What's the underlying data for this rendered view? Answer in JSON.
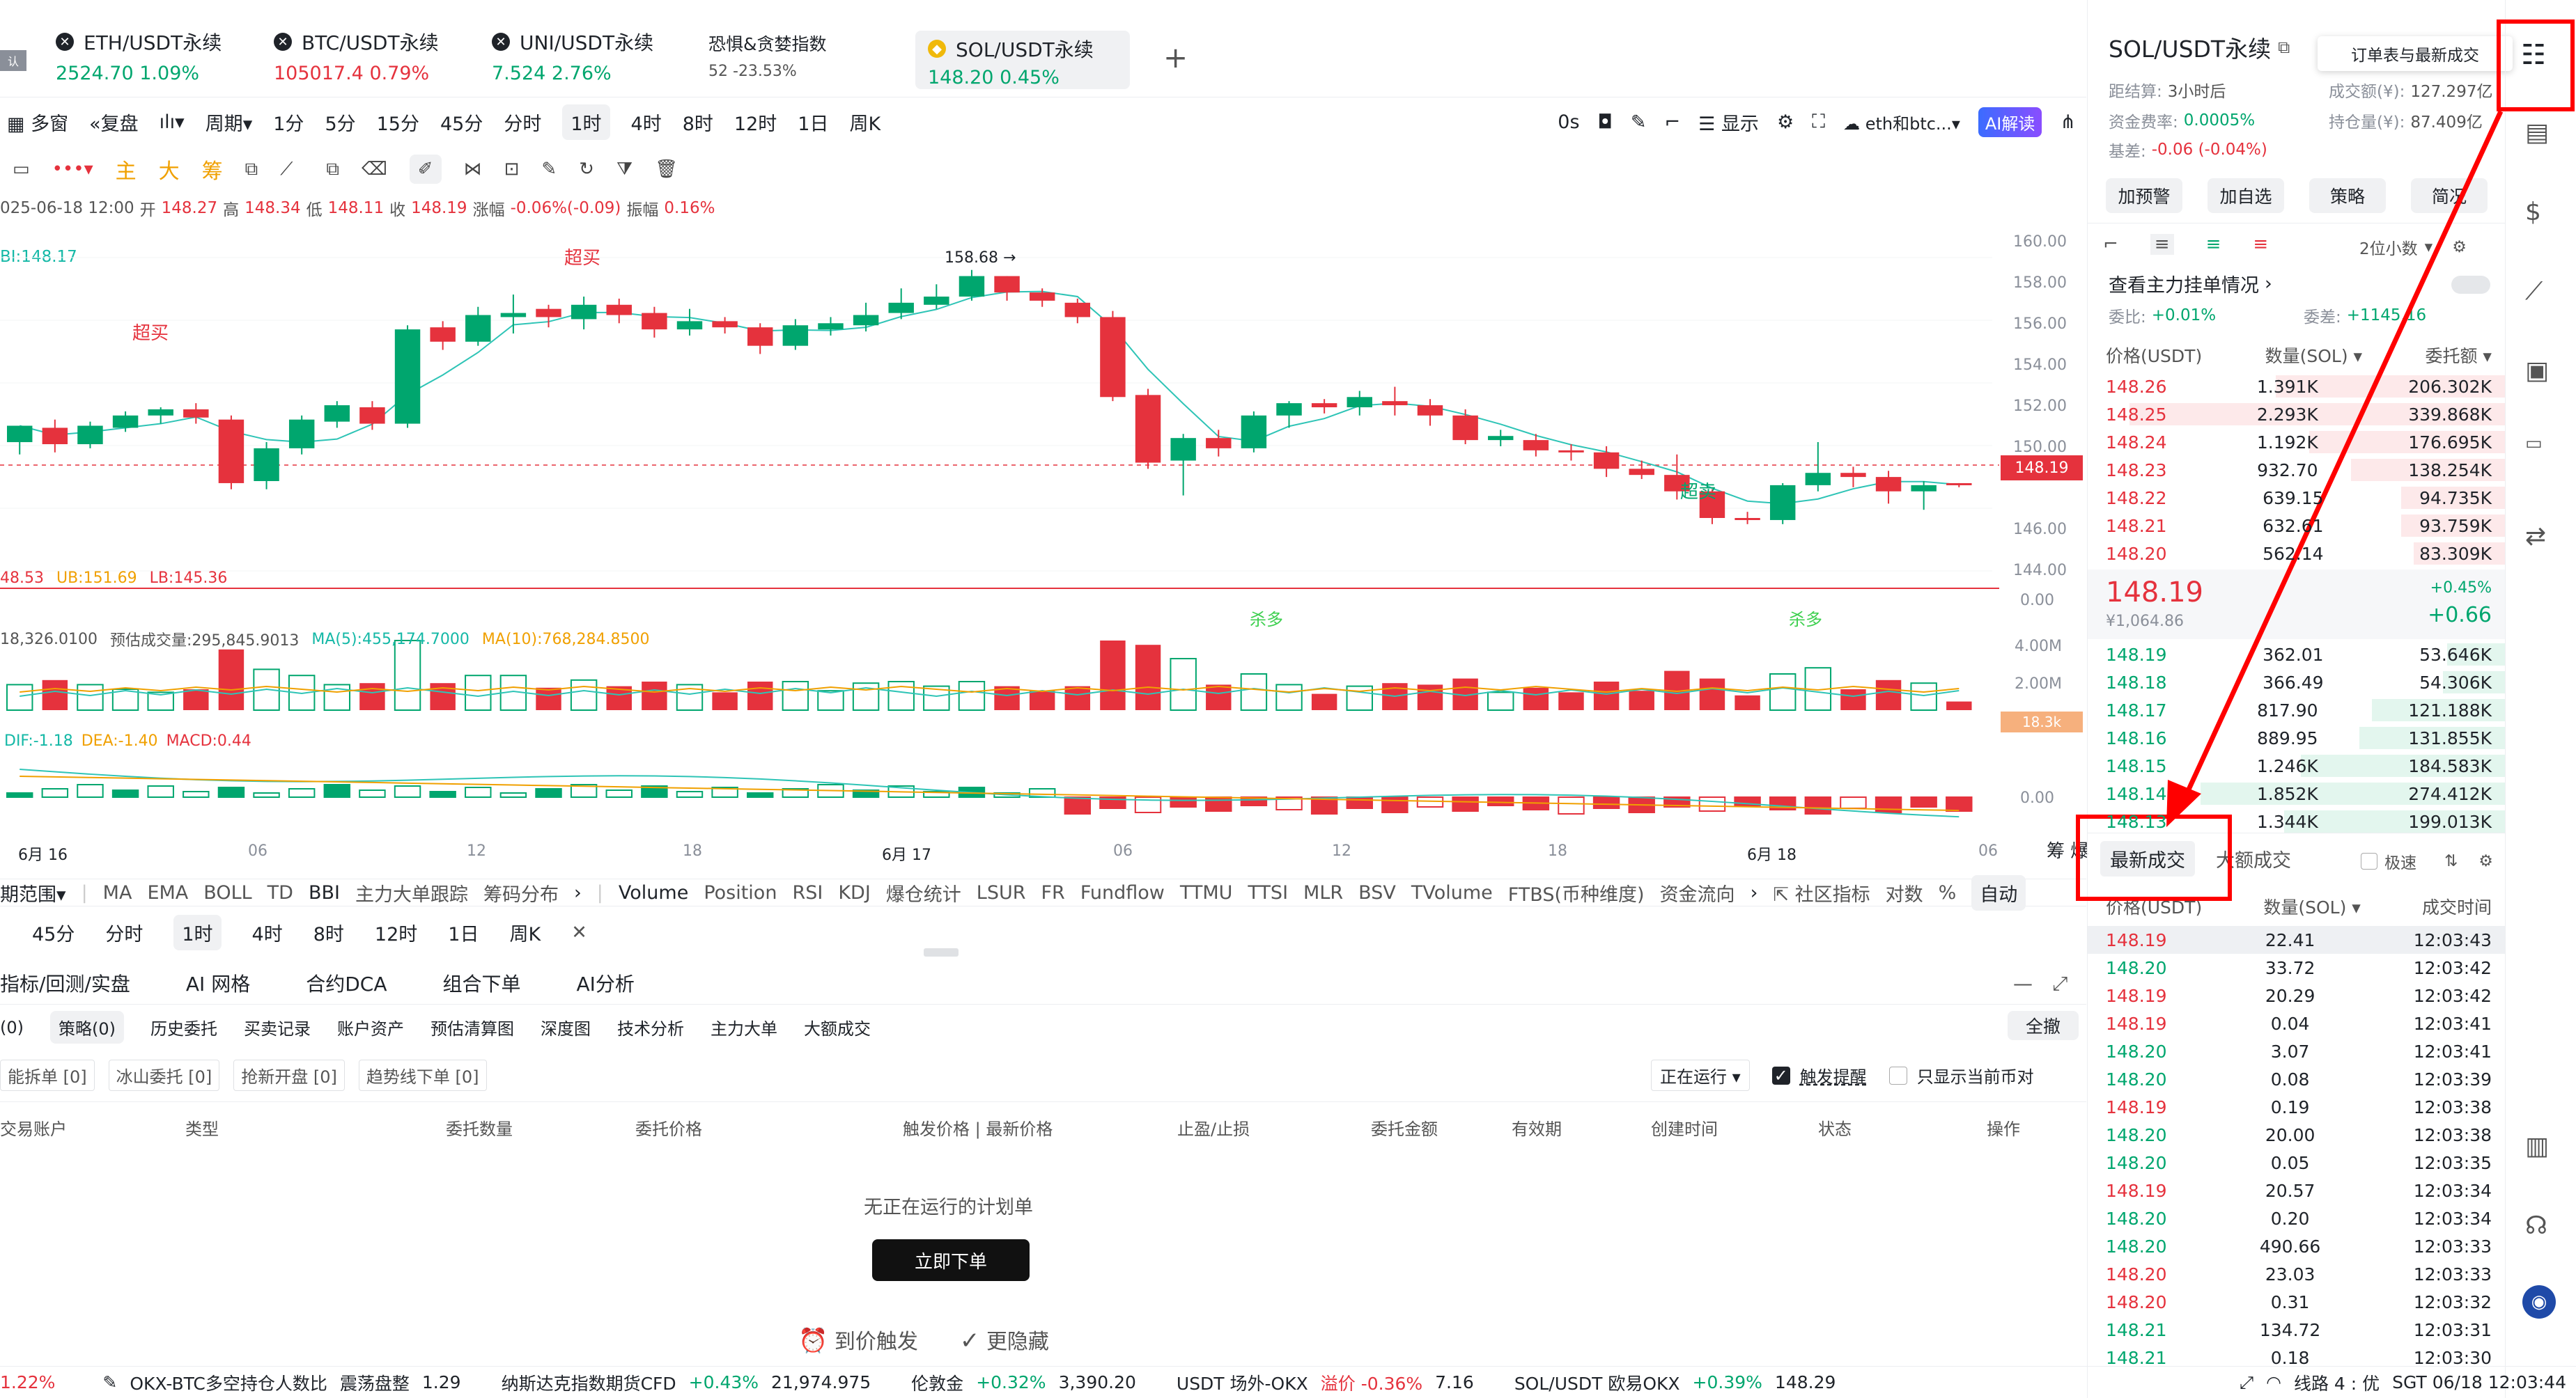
{
  "top_tabs": [
    {
      "name": "ETH/USDT永续",
      "price": "2524.70",
      "change": "1.09%",
      "dir": "up"
    },
    {
      "name": "BTC/USDT永续",
      "price": "105017.4",
      "change": "0.79%",
      "dir": "down"
    },
    {
      "name": "UNI/USDT永续",
      "price": "7.524",
      "change": "2.76%",
      "dir": "up"
    },
    {
      "name": "恐惧&贪婪指数",
      "price": "52",
      "change": "-23.53%",
      "dir": "flat"
    },
    {
      "name": "SOL/USDT永续",
      "price": "148.20",
      "change": "0.45%",
      "dir": "up"
    }
  ],
  "top_add": "+",
  "toolbar1": {
    "multi": "多窗",
    "replay": "复盘",
    "period": "周期",
    "intervals": [
      "1分",
      "5分",
      "15分",
      "45分",
      "分时",
      "1时",
      "4时",
      "8时",
      "12时",
      "1日",
      "周K"
    ],
    "active": "1时",
    "zero": "0s",
    "display": "显示",
    "compare": "eth和btc...",
    "ai": "AI解读"
  },
  "toolbar2": {
    "signals": [
      "主",
      "大",
      "筹"
    ]
  },
  "ohlc": {
    "date": "025-06-18 12:00",
    "o_label": "开",
    "o": "148.27",
    "h_label": "高",
    "h": "148.34",
    "l_label": "低",
    "l": "148.11",
    "c_label": "收",
    "c": "148.19",
    "chg_label": "涨幅",
    "chg": "-0.06%(-0.09)",
    "amp_label": "振幅",
    "amp": "0.16%"
  },
  "bbi_label": "BI:148.17",
  "chart_labels": {
    "overbought1": "超买",
    "overbought2": "超买",
    "oversold": "超卖",
    "max_label": "158.68",
    "kill1": "杀多",
    "kill2": "杀多"
  },
  "bands": {
    "mid": "48.53",
    "ub": "UB:151.69",
    "lb": "LB:145.36"
  },
  "vol_line": {
    "v": "18,326.0100",
    "est": "预估成交量:295,845.9013",
    "ma5": "MA(5):455,174.7000",
    "ma10": "MA(10):768,284.8500"
  },
  "macd_line": {
    "dif": "DIF:-1.18",
    "dea": "DEA:-1.40",
    "macd": "MACD:0.44"
  },
  "price_axis": [
    "160.00",
    "158.00",
    "156.00",
    "154.00",
    "152.00",
    "150.00",
    "148.19",
    "146.00",
    "144.00"
  ],
  "sub_axis": {
    "zero1": "0.00",
    "v4": "4.00M",
    "v2": "2.00M",
    "vcur": "18.3k",
    "zero2": "0.00"
  },
  "time_axis": [
    "6月 16",
    "06",
    "12",
    "18",
    "6月 17",
    "06",
    "12",
    "18",
    "6月 18",
    "06"
  ],
  "chart_data": {
    "type": "candlestick",
    "candles": [
      [
        150.3,
        151.1,
        149.7,
        151.0
      ],
      [
        151.0,
        150.2,
        149.8,
        151.4
      ],
      [
        150.2,
        151.1,
        150.0,
        151.3
      ],
      [
        151.0,
        151.6,
        150.8,
        151.8
      ],
      [
        151.6,
        151.9,
        151.2,
        152.0
      ],
      [
        151.9,
        151.5,
        151.2,
        152.2
      ],
      [
        151.4,
        148.3,
        148.0,
        151.6
      ],
      [
        148.4,
        150.0,
        148.0,
        150.3
      ],
      [
        150.0,
        151.4,
        149.7,
        151.6
      ],
      [
        151.3,
        152.1,
        151.0,
        152.3
      ],
      [
        152.0,
        151.2,
        150.9,
        152.3
      ],
      [
        151.2,
        155.8,
        151.0,
        156.0
      ],
      [
        155.9,
        155.2,
        154.8,
        156.2
      ],
      [
        155.2,
        156.5,
        155.0,
        156.9
      ],
      [
        156.4,
        156.6,
        155.6,
        157.5
      ],
      [
        156.8,
        156.4,
        155.9,
        157.0
      ],
      [
        156.3,
        157.0,
        155.8,
        157.4
      ],
      [
        157.0,
        156.5,
        156.1,
        157.3
      ],
      [
        156.6,
        155.8,
        155.4,
        156.9
      ],
      [
        155.8,
        156.2,
        155.5,
        156.8
      ],
      [
        156.2,
        155.9,
        155.6,
        156.4
      ],
      [
        155.9,
        155.0,
        154.6,
        156.1
      ],
      [
        155.0,
        156.0,
        154.8,
        156.3
      ],
      [
        155.8,
        156.1,
        155.5,
        156.4
      ],
      [
        156.0,
        156.5,
        155.7,
        157.1
      ],
      [
        156.6,
        157.1,
        156.3,
        157.8
      ],
      [
        157.0,
        157.4,
        156.8,
        158.0
      ],
      [
        157.4,
        158.4,
        157.2,
        158.7
      ],
      [
        158.4,
        157.6,
        157.2,
        158.4
      ],
      [
        157.6,
        157.2,
        156.9,
        157.8
      ],
      [
        157.1,
        156.4,
        156.1,
        157.3
      ],
      [
        156.4,
        152.5,
        152.3,
        156.7
      ],
      [
        152.6,
        149.3,
        149.0,
        152.9
      ],
      [
        149.4,
        150.5,
        147.7,
        150.7
      ],
      [
        150.5,
        150.0,
        149.6,
        150.9
      ],
      [
        150.0,
        151.6,
        149.8,
        151.8
      ],
      [
        151.6,
        152.2,
        151.0,
        152.3
      ],
      [
        152.2,
        152.0,
        151.7,
        152.4
      ],
      [
        152.0,
        152.5,
        151.6,
        152.8
      ],
      [
        152.3,
        152.1,
        151.6,
        153.0
      ],
      [
        152.1,
        151.6,
        151.1,
        152.4
      ],
      [
        151.6,
        150.4,
        150.2,
        151.9
      ],
      [
        150.4,
        150.6,
        150.1,
        150.9
      ],
      [
        150.4,
        149.9,
        149.6,
        150.7
      ],
      [
        149.9,
        149.8,
        149.4,
        150.2
      ],
      [
        149.8,
        149.0,
        148.6,
        150.1
      ],
      [
        149.0,
        148.7,
        148.5,
        149.4
      ],
      [
        148.7,
        147.9,
        147.5,
        149.7
      ],
      [
        147.9,
        146.6,
        146.3,
        148.0
      ],
      [
        146.6,
        146.5,
        146.3,
        146.9
      ],
      [
        146.5,
        148.2,
        146.3,
        148.3
      ],
      [
        148.2,
        148.8,
        147.9,
        150.3
      ],
      [
        148.8,
        148.6,
        148.1,
        149.1
      ],
      [
        148.6,
        147.9,
        147.3,
        148.9
      ],
      [
        147.9,
        148.2,
        147.0,
        148.4
      ],
      [
        148.3,
        148.2,
        148.1,
        148.3
      ]
    ],
    "y_range": [
      143.0,
      161.0
    ]
  },
  "indicators_row": {
    "left": [
      "期范围",
      "MA",
      "EMA",
      "BOLL",
      "TD",
      "BBI",
      "主力大单跟踪",
      "筹码分布"
    ],
    "right": [
      "Volume",
      "Position",
      "RSI",
      "KDJ",
      "爆仓统计",
      "LSUR",
      "FR",
      "Fundflow",
      "TTMU",
      "TTSI",
      "MLR",
      "BSV",
      "TVolume",
      "FTBS(币种维度)",
      "资金流向"
    ],
    "extra": "社区指标",
    "duishu": "对数",
    "pct": "%",
    "auto": "自动",
    "chou": "筹",
    "bao": "爆"
  },
  "interval_row": [
    "45分",
    "分时",
    "1时",
    "4时",
    "8时",
    "12时",
    "1日",
    "周K"
  ],
  "bottom_tabs": [
    "指标/回测/实盘",
    "AI 网格",
    "合约DCA",
    "组合下单",
    "AI分析"
  ],
  "sub_tabs": [
    "(0)",
    "策略(0)",
    "历史委托",
    "买卖记录",
    "账户资产",
    "预估清算图",
    "深度图",
    "技术分析",
    "主力大单",
    "大额成交"
  ],
  "sub_tabs_active": "策略(0)",
  "cancel_all": "全撤",
  "filters": [
    "能拆单 [0]",
    "冰山委托 [0]",
    "抢新开盘 [0]",
    "趋势线下单 [0]"
  ],
  "running": "正在运行",
  "trigger_remind": "触发提醒",
  "only_current": "只显示当前币对",
  "table_headers": [
    "交易账户",
    "类型",
    "委托数量",
    "委托价格",
    "触发价格 | 最新价格",
    "止盈/止损",
    "委托金额",
    "有效期",
    "创建时间",
    "状态",
    "操作"
  ],
  "empty_text": "无正在运行的计划单",
  "order_now": "立即下单",
  "feature_links": [
    "到价触发",
    "更隐藏"
  ],
  "rp": {
    "title": "SOL/USDT永续",
    "settle_label": "距结算:",
    "settle": "3小时后",
    "vol_label": "成交额(¥):",
    "vol": "127.297亿",
    "fee_label": "资金费率:",
    "fee": "0.0005%",
    "oi_label": "持仓量(¥):",
    "oi": "87.409亿",
    "basis_label": "基差:",
    "basis": "-0.06 (-0.04%)",
    "actions": [
      "加预警",
      "加自选",
      "策略",
      "简况"
    ],
    "decimals": "2位小数",
    "big_orders": "查看主力挂单情况",
    "ratio_label": "委比:",
    "ratio": "+0.01%",
    "diff_label": "委差:",
    "diff": "+1145.16",
    "ob_headers": [
      "价格(USDT)",
      "数量(SOL)",
      "委托额"
    ],
    "asks": [
      [
        "148.26",
        "1.391K",
        "206.302K",
        0.55
      ],
      [
        "148.25",
        "2.293K",
        "339.868K",
        0.9
      ],
      [
        "148.24",
        "1.192K",
        "176.695K",
        0.47
      ],
      [
        "148.23",
        "932.70",
        "138.254K",
        0.37
      ],
      [
        "148.22",
        "639.15",
        "94.735K",
        0.25
      ],
      [
        "148.21",
        "632.61",
        "93.759K",
        0.25
      ],
      [
        "148.20",
        "562.14",
        "83.309K",
        0.22
      ]
    ],
    "last_price": "148.19",
    "last_cny": "¥1,064.86",
    "last_pct": "+0.45%",
    "last_chg": "+0.66",
    "bids": [
      [
        "148.19",
        "362.01",
        "53.646K",
        0.14
      ],
      [
        "148.18",
        "366.49",
        "54.306K",
        0.15
      ],
      [
        "148.17",
        "817.90",
        "121.188K",
        0.32
      ],
      [
        "148.16",
        "889.95",
        "131.855K",
        0.35
      ],
      [
        "148.15",
        "1.246K",
        "184.583K",
        0.49
      ],
      [
        "148.14",
        "1.852K",
        "274.412K",
        0.73
      ],
      [
        "148.13",
        "1.344K",
        "199.013K",
        0.53
      ]
    ],
    "trade_tabs": [
      "最新成交",
      "大额成交"
    ],
    "fast": "极速",
    "trade_headers": [
      "价格(USDT)",
      "数量(SOL)",
      "成交时间"
    ],
    "trades": [
      [
        "148.19",
        "22.41",
        "12:03:43",
        "r"
      ],
      [
        "148.20",
        "33.72",
        "12:03:42",
        "g"
      ],
      [
        "148.19",
        "20.29",
        "12:03:42",
        "r"
      ],
      [
        "148.19",
        "0.04",
        "12:03:41",
        "r"
      ],
      [
        "148.20",
        "3.07",
        "12:03:41",
        "g"
      ],
      [
        "148.20",
        "0.08",
        "12:03:39",
        "g"
      ],
      [
        "148.19",
        "0.19",
        "12:03:38",
        "r"
      ],
      [
        "148.20",
        "20.00",
        "12:03:38",
        "g"
      ],
      [
        "148.20",
        "0.05",
        "12:03:35",
        "g"
      ],
      [
        "148.19",
        "20.57",
        "12:03:34",
        "r"
      ],
      [
        "148.20",
        "0.20",
        "12:03:34",
        "g"
      ],
      [
        "148.20",
        "490.66",
        "12:03:33",
        "g"
      ],
      [
        "148.20",
        "23.03",
        "12:03:33",
        "r"
      ],
      [
        "148.20",
        "0.31",
        "12:03:32",
        "r"
      ],
      [
        "148.21",
        "134.72",
        "12:03:31",
        "g"
      ],
      [
        "148.21",
        "0.18",
        "12:03:30",
        "g"
      ]
    ]
  },
  "side_tooltip": "订单表与最新成交",
  "ticker": {
    "items": [
      {
        "a": "1.22%",
        "b": "",
        "c": ""
      },
      {
        "a": "OKX-BTC多空持仓人数比",
        "b": "震荡盘整",
        "c": "1.29"
      },
      {
        "a": "纳斯达克指数期货CFD",
        "b": "+0.43%",
        "c": "21,974.975"
      },
      {
        "a": "伦敦金",
        "b": "+0.32%",
        "c": "3,390.20"
      },
      {
        "a": "USDT 场外-OKX",
        "b": "溢价 -0.36%",
        "c": "7.16"
      },
      {
        "a": "SOL/USDT 欧易OKX",
        "b": "+0.39%",
        "c": "148.29"
      }
    ],
    "line": "线路 4 : 优",
    "time": "SGT 06/18 12:03:44"
  },
  "colors": {
    "up": "#00a66e",
    "down": "#e5323d",
    "accent": "#1f2329",
    "annot": "#ff0000"
  }
}
